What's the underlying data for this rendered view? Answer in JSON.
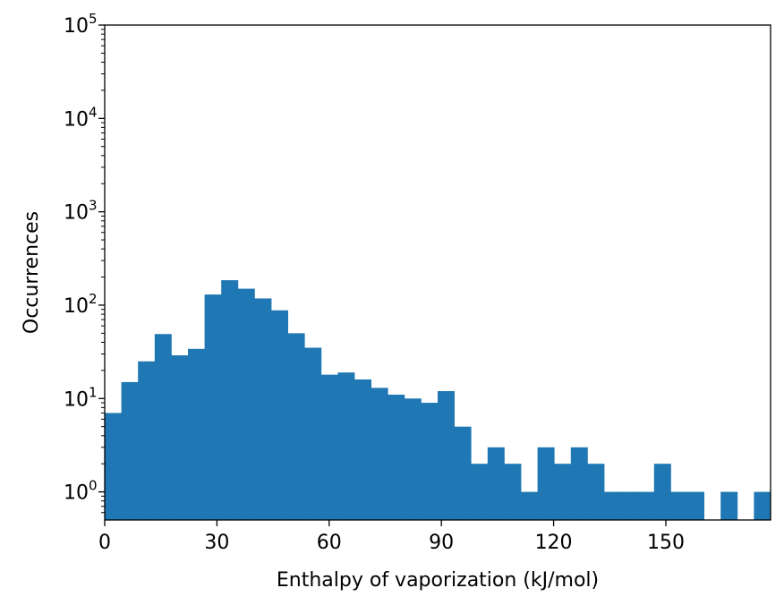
{
  "chart_data": {
    "type": "bar",
    "title": "",
    "xlabel": "Enthalpy of vaporization (kJ/mol)",
    "ylabel": "Occurrences",
    "y_scale": "log",
    "ylim": [
      0.5,
      100000
    ],
    "xlim": [
      0,
      178
    ],
    "bar_color": "#1f77b4",
    "x_ticks": [
      {
        "value": 0,
        "label": "0"
      },
      {
        "value": 30,
        "label": "30"
      },
      {
        "value": 60,
        "label": "60"
      },
      {
        "value": 90,
        "label": "90"
      },
      {
        "value": 120,
        "label": "120"
      },
      {
        "value": 150,
        "label": "150"
      }
    ],
    "y_ticks": [
      {
        "value": 1,
        "base": "10",
        "exp": "0"
      },
      {
        "value": 10,
        "base": "10",
        "exp": "1"
      },
      {
        "value": 100,
        "base": "10",
        "exp": "2"
      },
      {
        "value": 1000,
        "base": "10",
        "exp": "3"
      },
      {
        "value": 10000,
        "base": "10",
        "exp": "4"
      },
      {
        "value": 100000,
        "base": "10",
        "exp": "5"
      }
    ],
    "bin_width": 4.45,
    "bin_start": 0,
    "values": [
      7,
      15,
      25,
      49,
      29,
      34,
      130,
      185,
      150,
      118,
      88,
      50,
      35,
      18,
      19,
      16,
      13,
      11,
      10,
      9,
      12,
      5,
      2,
      3,
      2,
      1,
      3,
      2,
      3,
      2,
      1,
      1,
      1,
      2,
      1,
      1,
      0,
      1,
      0,
      1
    ],
    "grid": false
  }
}
